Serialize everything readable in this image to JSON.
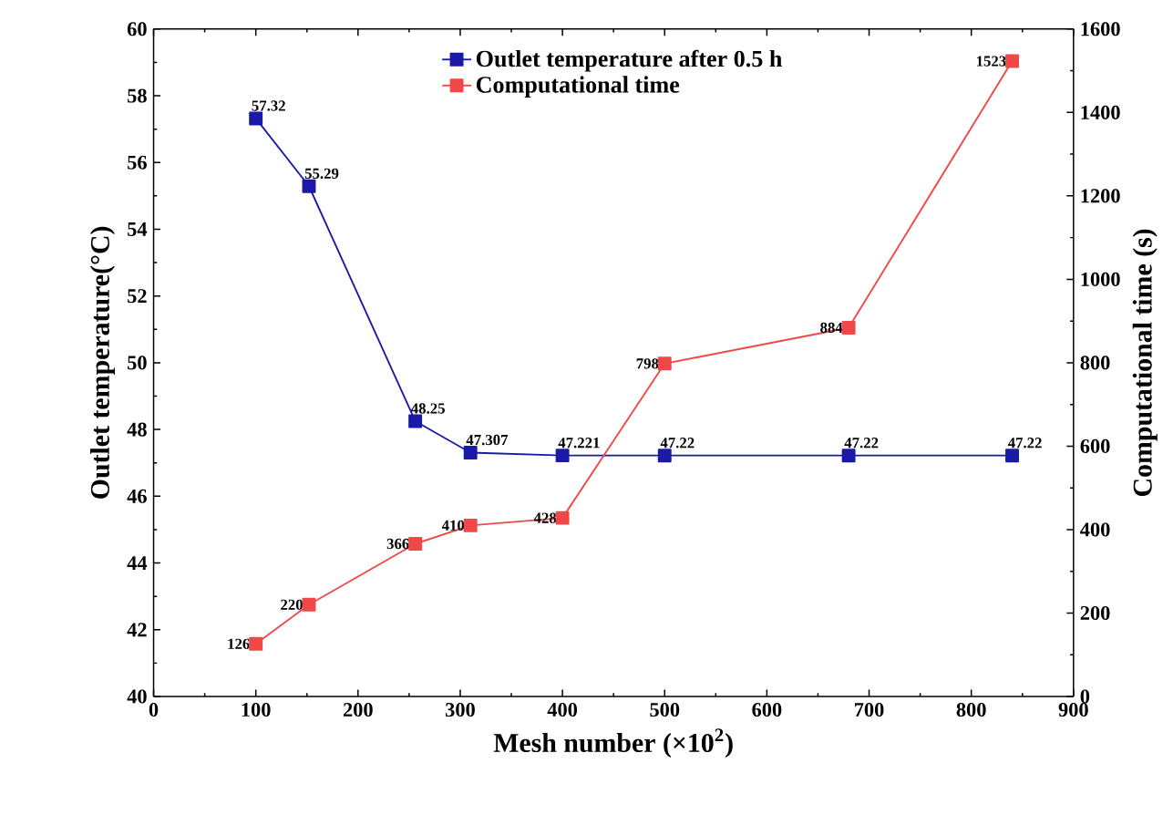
{
  "chart_data": {
    "type": "line",
    "xlabel": "Mesh number (×10$^{2}$)",
    "ylabel": "Outlet temperature(°C)",
    "y2label": "Computational time (s)",
    "x": [
      100,
      152,
      256,
      310,
      400,
      500,
      680,
      840
    ],
    "series": [
      {
        "name": "Outlet temperature after 0.5 h",
        "color": "#1a1aa6",
        "values": [
          57.32,
          55.29,
          48.25,
          47.307,
          47.221,
          47.22,
          47.22,
          47.22
        ]
      },
      {
        "name": "Computational time",
        "color": "#f04848",
        "axis": "y2",
        "values": [
          126,
          220,
          366,
          410,
          428,
          798,
          884,
          1523
        ]
      }
    ],
    "xlim": [
      0,
      900
    ],
    "xticks": [
      0,
      100,
      200,
      300,
      400,
      500,
      600,
      700,
      800,
      900
    ],
    "ylim": [
      40,
      60
    ],
    "yticks": [
      40,
      42,
      44,
      46,
      48,
      50,
      52,
      54,
      56,
      58,
      60
    ],
    "y2lim": [
      0,
      1600
    ],
    "y2ticks": [
      0,
      200,
      400,
      600,
      800,
      1000,
      1200,
      1400,
      1600
    ],
    "data_labels": true,
    "legend": "top",
    "marker": "square",
    "line_style": "solid",
    "grid": false
  }
}
